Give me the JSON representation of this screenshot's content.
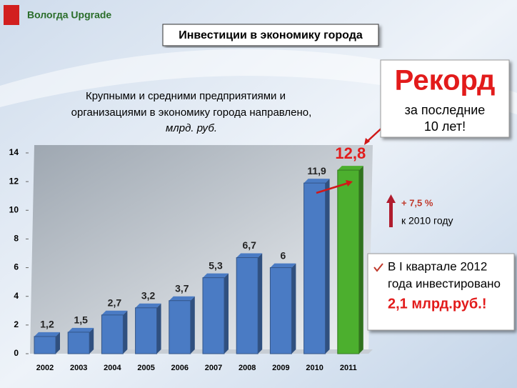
{
  "logo": "Вологда Upgrade",
  "slide_title": "Инвестиции в экономику города",
  "chart_data": {
    "type": "bar",
    "subtitle": [
      "Крупными и средними предприятиями и",
      "организациями в экономику города направлено,",
      "млрд. руб."
    ],
    "categories": [
      "2002",
      "2003",
      "2004",
      "2005",
      "2006",
      "2007",
      "2008",
      "2009",
      "2010",
      "2011"
    ],
    "values": [
      1.2,
      1.5,
      2.7,
      3.2,
      3.7,
      5.3,
      6.7,
      6,
      11.9,
      12.8
    ],
    "value_labels": [
      "1,2",
      "1,5",
      "2,7",
      "3,2",
      "3,7",
      "5,3",
      "6,7",
      "6",
      "11,9",
      "12,8"
    ],
    "colors": [
      "#4a7bc4",
      "#4a7bc4",
      "#4a7bc4",
      "#4a7bc4",
      "#4a7bc4",
      "#4a7bc4",
      "#4a7bc4",
      "#4a7bc4",
      "#4a7bc4",
      "#4caf2e"
    ],
    "ylim": [
      0,
      14
    ],
    "yticks": [
      0,
      2,
      4,
      6,
      8,
      10,
      12,
      14
    ],
    "grid": false
  },
  "record": {
    "title": "Рекорд",
    "lines": [
      "за последние",
      "10 лет!"
    ]
  },
  "growth": {
    "percent": "+ 7,5 %",
    "text": "к 2010 году"
  },
  "quarter": {
    "lines": [
      "В I квартале 2012",
      "года инвестировано"
    ],
    "amount": "2,1 млрд.руб.!"
  }
}
